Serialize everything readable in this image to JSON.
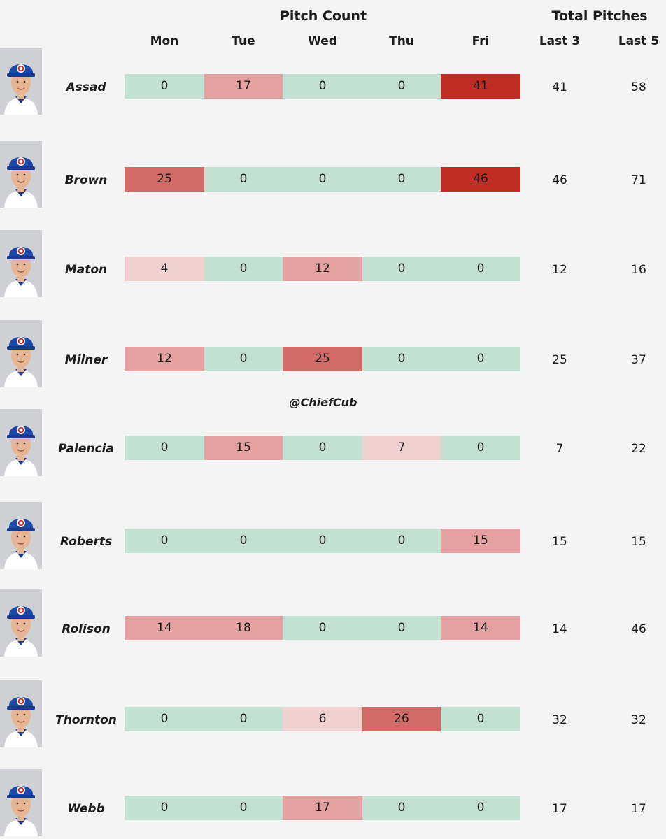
{
  "header": {
    "group_pitch_count": "Pitch Count",
    "group_total": "Total Pitches",
    "days": [
      "Mon",
      "Tue",
      "Wed",
      "Thu",
      "Fri"
    ],
    "totals": [
      "Last 3",
      "Last 5"
    ]
  },
  "watermark": "@ChiefCub",
  "colors": {
    "zero": "#c3e1d2",
    "scale": [
      "#f1d0d0",
      "#e4a1a1",
      "#d26b68",
      "#bf2c24"
    ]
  },
  "chart_data": {
    "type": "table",
    "title": "Pitch Count",
    "columns": [
      "Mon",
      "Tue",
      "Wed",
      "Thu",
      "Fri",
      "Last 3",
      "Last 5"
    ],
    "rows": [
      {
        "name": "Assad",
        "days": [
          0,
          17,
          0,
          0,
          41
        ],
        "last3": 41,
        "last5": 58
      },
      {
        "name": "Brown",
        "days": [
          25,
          0,
          0,
          0,
          46
        ],
        "last3": 46,
        "last5": 71
      },
      {
        "name": "Maton",
        "days": [
          4,
          0,
          12,
          0,
          0
        ],
        "last3": 12,
        "last5": 16
      },
      {
        "name": "Milner",
        "days": [
          12,
          0,
          25,
          0,
          0
        ],
        "last3": 25,
        "last5": 37
      },
      {
        "name": "Palencia",
        "days": [
          0,
          15,
          0,
          7,
          0
        ],
        "last3": 7,
        "last5": 22
      },
      {
        "name": "Roberts",
        "days": [
          0,
          0,
          0,
          0,
          15
        ],
        "last3": 15,
        "last5": 15
      },
      {
        "name": "Rolison",
        "days": [
          14,
          18,
          0,
          0,
          14
        ],
        "last3": 14,
        "last5": 46
      },
      {
        "name": "Thornton",
        "days": [
          0,
          0,
          6,
          26,
          0
        ],
        "last3": 32,
        "last5": 32
      },
      {
        "name": "Webb",
        "days": [
          0,
          0,
          17,
          0,
          0
        ],
        "last3": 17,
        "last5": 17
      }
    ]
  }
}
